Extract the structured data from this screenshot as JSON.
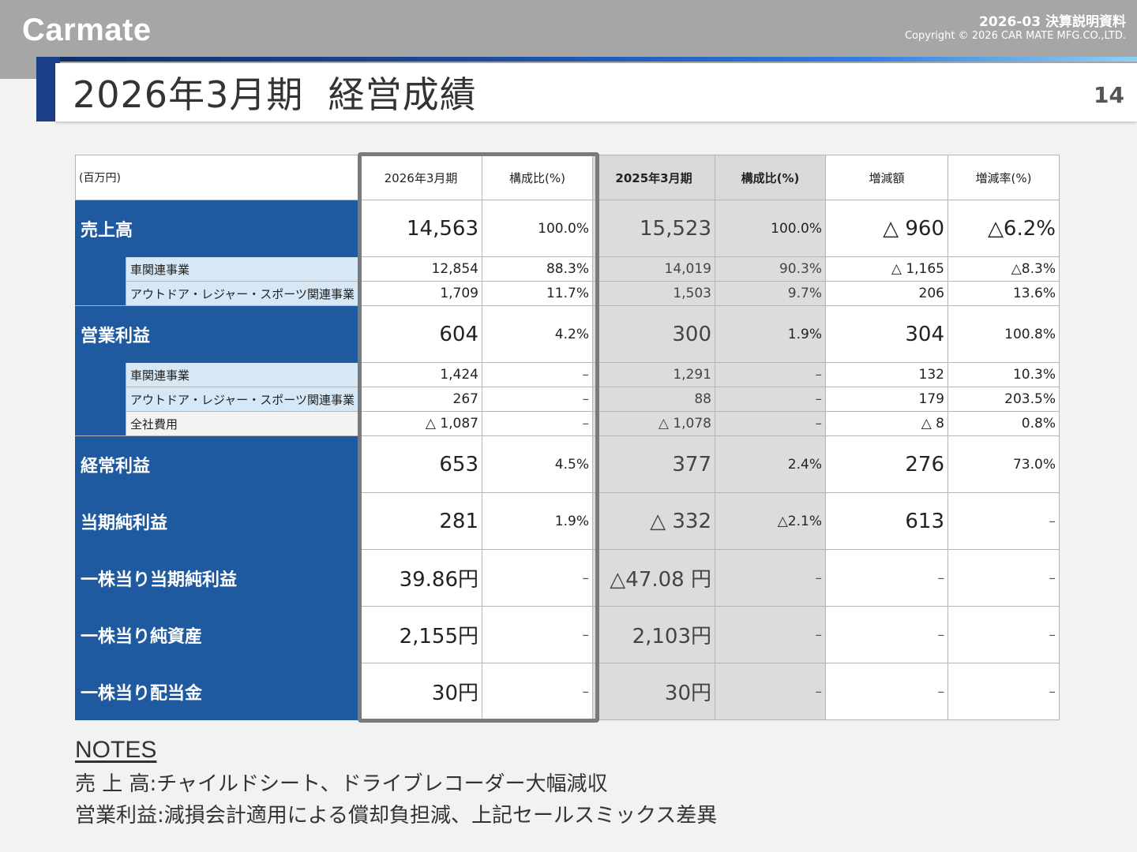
{
  "header": {
    "logo": "Carmate",
    "doc_label": "2026-03  決算説明資料",
    "copyright": "Copyright © 2026 CAR MATE MFG.CO.,LTD."
  },
  "title": "2026年3月期  経営成績",
  "page_number": "14",
  "table": {
    "columns": {
      "unit": "(百万円)",
      "cur": "2026年3月期",
      "cur_ratio": "構成比(%)",
      "prev": "2025年3月期",
      "prev_ratio": "構成比(%)",
      "diff": "増減額",
      "rate": "増減率(%)"
    },
    "sales": {
      "label": "売上高",
      "cur": "14,563",
      "cur_ratio": "100.0%",
      "prev": "15,523",
      "prev_ratio": "100.0%",
      "diff": "△ 960",
      "rate": "△6.2%"
    },
    "sales_car": {
      "label": "車関連事業",
      "cur": "12,854",
      "cur_ratio": "88.3%",
      "prev": "14,019",
      "prev_ratio": "90.3%",
      "diff": "△ 1,165",
      "rate": "△8.3%"
    },
    "sales_outdoor": {
      "label": "アウトドア・レジャー・スポーツ関連事業",
      "cur": "1,709",
      "cur_ratio": "11.7%",
      "prev": "1,503",
      "prev_ratio": "9.7%",
      "diff": "206",
      "rate": "13.6%"
    },
    "op": {
      "label": "営業利益",
      "cur": "604",
      "cur_ratio": "4.2%",
      "prev": "300",
      "prev_ratio": "1.9%",
      "diff": "304",
      "rate": "100.8%"
    },
    "op_car": {
      "label": "車関連事業",
      "cur": "1,424",
      "cur_ratio": "–",
      "prev": "1,291",
      "prev_ratio": "–",
      "diff": "132",
      "rate": "10.3%"
    },
    "op_outdoor": {
      "label": "アウトドア・レジャー・スポーツ関連事業",
      "cur": "267",
      "cur_ratio": "–",
      "prev": "88",
      "prev_ratio": "–",
      "diff": "179",
      "rate": "203.5%"
    },
    "op_corp": {
      "label": "全社費用",
      "cur": "△ 1,087",
      "cur_ratio": "–",
      "prev": "△ 1,078",
      "prev_ratio": "–",
      "diff": "△ 8",
      "rate": "0.8%"
    },
    "ordinary": {
      "label": "経常利益",
      "cur": "653",
      "cur_ratio": "4.5%",
      "prev": "377",
      "prev_ratio": "2.4%",
      "diff": "276",
      "rate": "73.0%"
    },
    "net": {
      "label": "当期純利益",
      "cur": "281",
      "cur_ratio": "1.9%",
      "prev": "△ 332",
      "prev_ratio": "△2.1%",
      "diff": "613",
      "rate": "–"
    },
    "eps": {
      "label": "一株当り当期純利益",
      "cur": "39.86円",
      "cur_ratio": "–",
      "prev": "△47.08 円",
      "prev_ratio": "–",
      "diff": "–",
      "rate": "–"
    },
    "bps": {
      "label": "一株当り純資産",
      "cur": "2,155円",
      "cur_ratio": "–",
      "prev": "2,103円",
      "prev_ratio": "–",
      "diff": "–",
      "rate": "–"
    },
    "dps": {
      "label": "一株当り配当金",
      "cur": "30円",
      "cur_ratio": "–",
      "prev": "30円",
      "prev_ratio": "–",
      "diff": "–",
      "rate": "–"
    }
  },
  "notes": {
    "title": "NOTES",
    "lines": [
      "売 上 高:チャイルドシート、ドライブレコーダー大幅減収",
      "営業利益:減損会計適用による償却負担減、上記セールスミックス差異"
    ]
  }
}
